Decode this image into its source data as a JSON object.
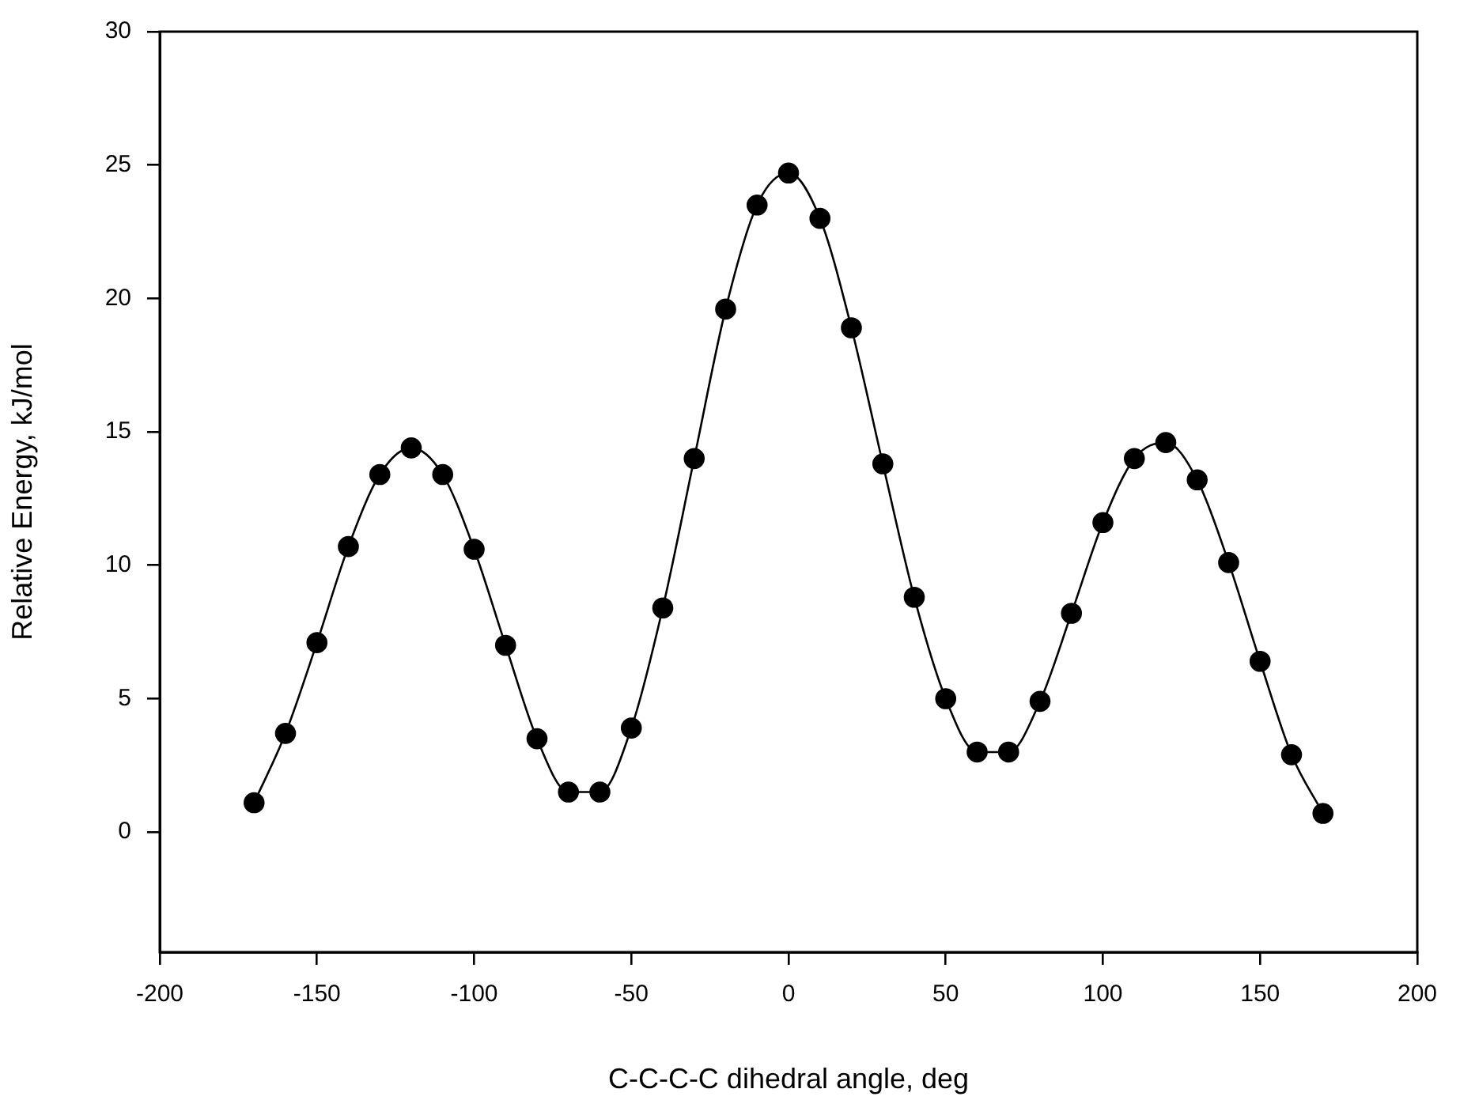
{
  "chart_data": {
    "type": "line",
    "xlabel": "C-C-C-C dihedral angle, deg",
    "ylabel": "Relative Energy, kJ/mol",
    "x": [
      -170,
      -160,
      -150,
      -140,
      -130,
      -120,
      -110,
      -100,
      -90,
      -80,
      -70,
      -60,
      -50,
      -40,
      -30,
      -20,
      -10,
      0,
      10,
      20,
      30,
      40,
      50,
      60,
      70,
      80,
      90,
      100,
      110,
      120,
      130,
      140,
      150,
      160,
      170
    ],
    "series": [
      {
        "color": "#000000",
        "values": [
          1.1,
          3.7,
          7.1,
          10.7,
          13.4,
          14.4,
          13.4,
          10.6,
          7.0,
          3.5,
          1.5,
          1.5,
          3.9,
          8.4,
          14.0,
          19.6,
          23.5,
          24.7,
          23.0,
          18.9,
          13.8,
          8.8,
          5.0,
          3.0,
          3.0,
          4.9,
          8.2,
          11.6,
          14.0,
          14.6,
          13.2,
          10.1,
          6.4,
          2.9,
          0.7
        ]
      }
    ],
    "xlim": [
      -200,
      200
    ],
    "xticks": [
      -200,
      -150,
      -100,
      -50,
      0,
      50,
      100,
      150,
      200
    ],
    "ylim": [
      -4.5,
      30
    ],
    "yticks": [
      0,
      5,
      10,
      15,
      20,
      25,
      30
    ],
    "marker": "circle"
  }
}
